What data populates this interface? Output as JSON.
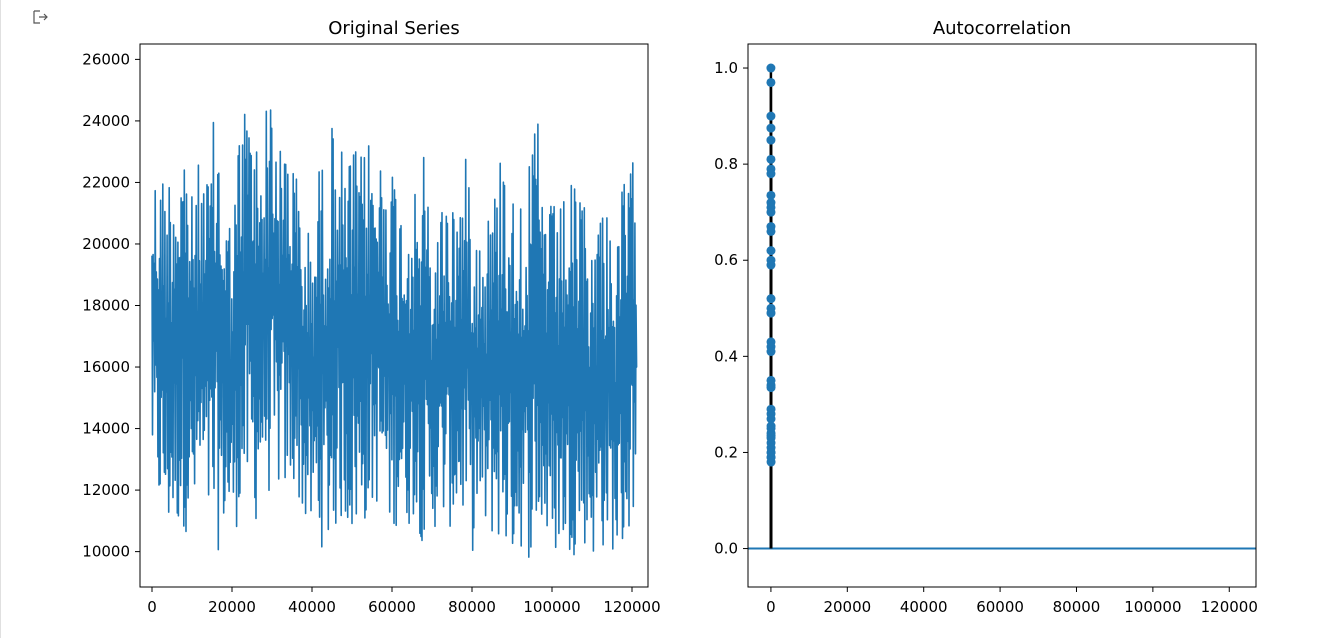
{
  "cell": {
    "output_icon": "output-arrow-icon"
  },
  "colors": {
    "series": "#1f77b4",
    "stem": "#000000",
    "axis": "#000000"
  },
  "chart_data": [
    {
      "type": "line",
      "title": "Original Series",
      "xlabel": "",
      "ylabel": "",
      "xlim": [
        -3000,
        124000
      ],
      "ylim": [
        8850,
        26500
      ],
      "xticks": [
        0,
        20000,
        40000,
        60000,
        80000,
        100000,
        120000
      ],
      "xtick_labels": [
        "0",
        "20000",
        "40000",
        "60000",
        "80000",
        "100000",
        "120000"
      ],
      "yticks": [
        10000,
        12000,
        14000,
        16000,
        18000,
        20000,
        22000,
        24000,
        26000
      ],
      "ytick_labels": [
        "10000",
        "12000",
        "14000",
        "16000",
        "18000",
        "20000",
        "22000",
        "24000",
        "26000"
      ],
      "grid": false,
      "series": [
        {
          "n_points": 121273,
          "x": [
            0,
            2000,
            4000,
            6000,
            8000,
            10000,
            12000,
            14000,
            16000,
            18000,
            20000,
            22000,
            24000,
            26000,
            28000,
            30000,
            32000,
            34000,
            36000,
            38000,
            40000,
            42000,
            44000,
            46000,
            48000,
            50000,
            52000,
            54000,
            56000,
            58000,
            60000,
            62000,
            64000,
            66000,
            68000,
            70000,
            72000,
            74000,
            76000,
            78000,
            80000,
            82000,
            84000,
            86000,
            88000,
            90000,
            92000,
            94000,
            96000,
            98000,
            100000,
            102000,
            104000,
            106000,
            108000,
            110000,
            112000,
            114000,
            116000,
            118000,
            120000,
            121273
          ],
          "upper": [
            22600,
            22500,
            22600,
            23300,
            24000,
            21600,
            22900,
            22300,
            24800,
            22200,
            20600,
            24200,
            25200,
            23700,
            24100,
            25700,
            23100,
            24100,
            22500,
            20700,
            20400,
            22900,
            23200,
            24700,
            22500,
            23300,
            22800,
            23600,
            22900,
            23300,
            23000,
            21500,
            21900,
            21600,
            23300,
            19800,
            21300,
            22200,
            21600,
            22800,
            22800,
            20600,
            21400,
            22000,
            24400,
            21600,
            22400,
            22100,
            24700,
            22000,
            21300,
            21200,
            22100,
            21800,
            21600,
            20100,
            21700,
            21900,
            19400,
            22600,
            22700,
            22800
          ],
          "lower": [
            12500,
            11000,
            10300,
            10600,
            10700,
            10400,
            11400,
            10600,
            9800,
            10600,
            10200,
            11200,
            11400,
            10900,
            12300,
            11500,
            12000,
            11600,
            12100,
            10800,
            10400,
            10200,
            9900,
            10600,
            11000,
            10300,
            10600,
            11000,
            11500,
            11300,
            10300,
            11300,
            10700,
            11200,
            9900,
            10600,
            10900,
            10700,
            10800,
            10900,
            9900,
            10800,
            10200,
            10500,
            9800,
            9800,
            10100,
            9700,
            10300,
            10200,
            9600,
            10100,
            9900,
            9900,
            10200,
            9800,
            9800,
            10300,
            9800,
            9800,
            10800,
            12500
          ],
          "end_value": 16000
        }
      ]
    },
    {
      "type": "scatter",
      "subtype": "stem",
      "title": "Autocorrelation",
      "xlabel": "",
      "ylabel": "",
      "xlim": [
        -6000,
        127000
      ],
      "ylim": [
        -0.08,
        1.05
      ],
      "xticks": [
        0,
        20000,
        40000,
        60000,
        80000,
        100000,
        120000
      ],
      "xtick_labels": [
        "0",
        "20000",
        "40000",
        "60000",
        "80000",
        "100000",
        "120000"
      ],
      "yticks": [
        0.0,
        0.2,
        0.4,
        0.6,
        0.8,
        1.0
      ],
      "ytick_labels": [
        "0.0",
        "0.2",
        "0.4",
        "0.6",
        "0.8",
        "1.0"
      ],
      "grid": false,
      "zero_line": 0.0,
      "lags": [
        0,
        1,
        2,
        3,
        4,
        5,
        6,
        7,
        8,
        9,
        10,
        11,
        12,
        13,
        14,
        15,
        16,
        17,
        18,
        19,
        20,
        21,
        22,
        23,
        24,
        25,
        26,
        27,
        28,
        29,
        30,
        31,
        32,
        33,
        34,
        35,
        36,
        37,
        38,
        39,
        40
      ],
      "values": [
        1.0,
        0.97,
        0.9,
        0.875,
        0.85,
        0.81,
        0.79,
        0.78,
        0.735,
        0.72,
        0.71,
        0.7,
        0.67,
        0.66,
        0.62,
        0.6,
        0.59,
        0.52,
        0.5,
        0.49,
        0.43,
        0.42,
        0.41,
        0.35,
        0.34,
        0.335,
        0.29,
        0.28,
        0.27,
        0.25,
        0.24,
        0.23,
        0.22,
        0.21,
        0.2,
        0.19,
        0.18,
        0.19,
        0.2,
        0.235,
        0.255
      ]
    }
  ]
}
